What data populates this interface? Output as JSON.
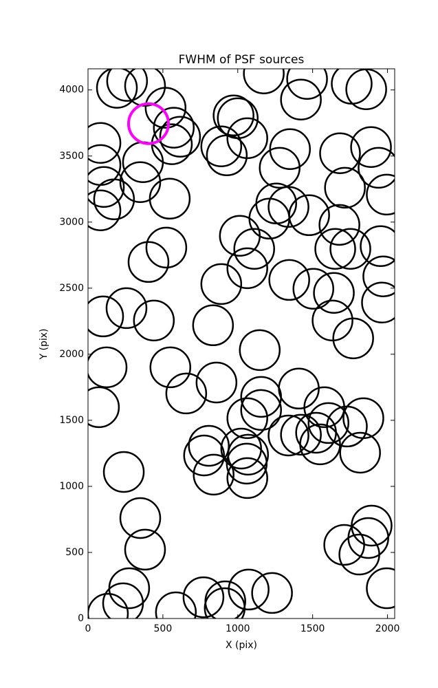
{
  "chart_data": {
    "type": "scatter",
    "title": "FWHM of PSF sources",
    "x_label": "X (pix)",
    "y_label": "Y (pix)",
    "xlim": [
      0,
      2048
    ],
    "ylim": [
      0,
      4160
    ],
    "xticks": [
      0,
      500,
      1000,
      1500,
      2000
    ],
    "yticks": [
      0,
      500,
      1000,
      1500,
      2000,
      2500,
      3000,
      3500,
      4000
    ],
    "grid": false,
    "series": [
      {
        "color": "#000000",
        "x": [
          193,
          261,
          381,
          518,
          573,
          615,
          560,
          367,
          349,
          83,
          83,
          106,
          174,
          83,
          546,
          523,
          404,
          101,
          257,
          440,
          124,
          550,
          656,
          73,
          239,
          349,
          381,
          275,
          234,
          133,
          587,
          890,
          927,
          972,
          1000,
          1064,
          1174,
          1463,
          1422,
          1349,
          1280,
          1257,
          1339,
          1211,
          1477,
          1014,
          1110,
          1064,
          890,
          1344,
          1505,
          1642,
          1633,
          1771,
          835,
          1147,
          858,
          1156,
          1156,
          1064,
          1408,
          1578,
          1606,
          1729,
          1839,
          1339,
          1422,
          1523,
          1550,
          1817,
          807,
          775,
          839,
          1023,
          1069,
          1060,
          1064,
          1894,
          1872,
          1812,
          1711,
          1995,
          771,
          917,
          913,
          1073,
          1229,
          1761,
          1858,
          1683,
          1890,
          1940,
          1716,
          1995,
          1679,
          1651,
          1752,
          1954,
          1972,
          1963
        ],
        "values": [
          4016,
          4068,
          4031,
          3865,
          3714,
          3646,
          3589,
          3453,
          3302,
          3599,
          3432,
          3266,
          3172,
          3089,
          3177,
          2807,
          2698,
          2286,
          2349,
          2255,
          1901,
          1901,
          1703,
          1599,
          1109,
          760,
          521,
          229,
          115,
          36,
          47,
          3573,
          3505,
          3807,
          3786,
          3635,
          4125,
          4083,
          3927,
          3552,
          3411,
          3141,
          3115,
          3026,
          3052,
          2896,
          2797,
          2651,
          2531,
          2562,
          2495,
          2464,
          2255,
          2120,
          2219,
          2031,
          1786,
          1677,
          1578,
          1516,
          1740,
          1599,
          1479,
          1453,
          1516,
          1385,
          1391,
          1406,
          1318,
          1255,
          1307,
          1234,
          1089,
          1286,
          1240,
          1172,
          1063,
          703,
          609,
          484,
          557,
          229,
          161,
          130,
          78,
          219,
          193,
          4047,
          4005,
          3521,
          3568,
          3411,
          3260,
          3208,
          2979,
          2797,
          2797,
          2818,
          2589,
          2391
        ]
      },
      {
        "color": "#ff00ff",
        "x": [
          404
        ],
        "values": [
          3745
        ]
      }
    ]
  }
}
